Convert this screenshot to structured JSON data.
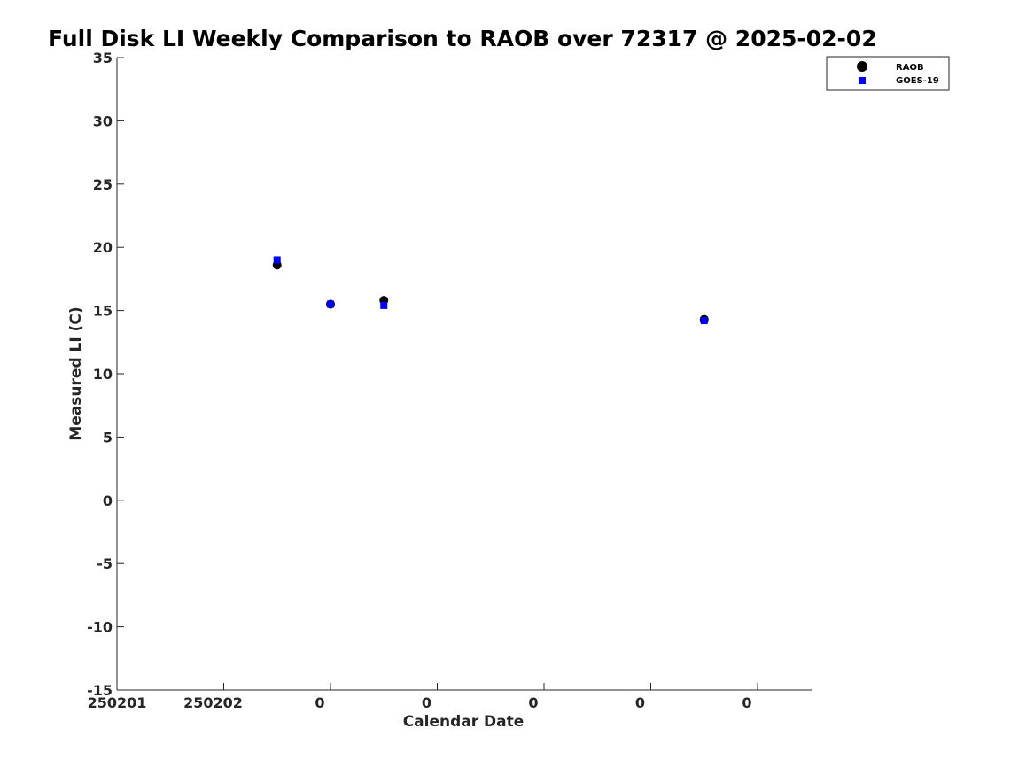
{
  "chart_data": {
    "type": "scatter",
    "title": "Full Disk LI Weekly Comparison to RAOB over 72317 @ 2025-02-02",
    "xlabel": "Calendar Date",
    "ylabel": "Measured LI (C)",
    "xlim": [
      0,
      6.5
    ],
    "ylim": [
      -15,
      35
    ],
    "x_ticks": [
      0,
      1,
      2,
      3,
      4,
      5,
      6
    ],
    "x_tick_labels": [
      "250201",
      "250202",
      "0",
      "0",
      "0",
      "0",
      "0"
    ],
    "y_ticks": [
      35,
      30,
      25,
      20,
      15,
      10,
      5,
      0,
      -5,
      -10,
      -15
    ],
    "y_tick_labels": [
      "35",
      "30",
      "25",
      "20",
      "15",
      "10",
      "5",
      "0",
      "-5",
      "-10",
      "-15"
    ],
    "grid": false,
    "legend_position": "top-right",
    "series": [
      {
        "name": "RAOB",
        "marker": "circle",
        "color": "#000000",
        "x": [
          1.5,
          2.0,
          2.5,
          5.5
        ],
        "y": [
          18.6,
          15.5,
          15.8,
          14.3
        ]
      },
      {
        "name": "GOES-19",
        "marker": "square",
        "color": "#0000ff",
        "x": [
          1.5,
          2.0,
          2.5,
          5.5
        ],
        "y": [
          19.0,
          15.5,
          15.4,
          14.2
        ]
      }
    ]
  }
}
